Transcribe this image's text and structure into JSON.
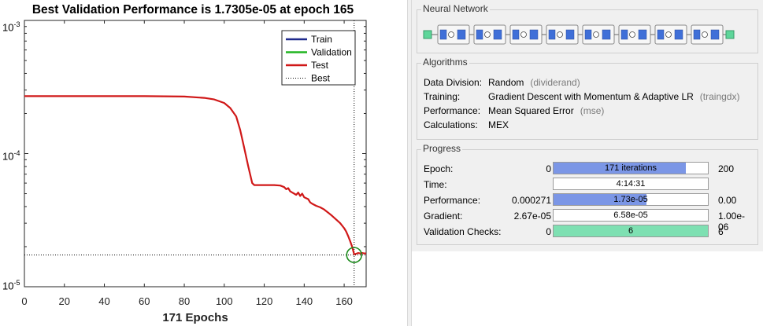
{
  "plot": {
    "title": "Best Validation Performance is 1.7305e-05 at epoch 165",
    "xlabel": "171 Epochs",
    "y_ticks": [
      {
        "base": "10",
        "exp": "-3"
      },
      {
        "base": "10",
        "exp": "-4"
      },
      {
        "base": "10",
        "exp": "-5"
      }
    ],
    "x_ticks": [
      "0",
      "20",
      "40",
      "60",
      "80",
      "100",
      "120",
      "140",
      "160"
    ],
    "legend": [
      {
        "label": "Train",
        "color": "#1f2a8c",
        "style": "solid"
      },
      {
        "label": "Validation",
        "color": "#22b522",
        "style": "solid"
      },
      {
        "label": "Test",
        "color": "#d01818",
        "style": "solid"
      },
      {
        "label": "Best",
        "color": "#000000",
        "style": "dotted"
      }
    ]
  },
  "chart_data": {
    "type": "line",
    "title": "Best Validation Performance is 1.7305e-05 at epoch 165",
    "xlabel": "171 Epochs",
    "ylabel": "",
    "yscale": "log",
    "xlim": [
      0,
      171
    ],
    "ylim": [
      1e-05,
      0.001
    ],
    "grid": false,
    "legend_position": "top-right",
    "series": [
      {
        "name": "Test",
        "color": "#d01818",
        "x": [
          0,
          20,
          40,
          60,
          80,
          90,
          95,
          100,
          103,
          106,
          108,
          110,
          112,
          114,
          115,
          116,
          118,
          120,
          125,
          128,
          130,
          131,
          132,
          133,
          134,
          135,
          136,
          137,
          138,
          139,
          140,
          142,
          143,
          144,
          146,
          148,
          150,
          152,
          154,
          156,
          158,
          160,
          161,
          162,
          163,
          164,
          165,
          166,
          167,
          168,
          169,
          170,
          171
        ],
        "y": [
          0.00027,
          0.00027,
          0.00027,
          0.00027,
          0.000268,
          0.000262,
          0.000255,
          0.00024,
          0.00022,
          0.00019,
          0.00015,
          0.00011,
          8e-05,
          6e-05,
          5.8e-05,
          5.8e-05,
          5.8e-05,
          5.8e-05,
          5.8e-05,
          5.75e-05,
          5.6e-05,
          5.4e-05,
          5.5e-05,
          5.2e-05,
          5.1e-05,
          5e-05,
          4.9e-05,
          5.1e-05,
          4.8e-05,
          5e-05,
          4.7e-05,
          4.55e-05,
          4.3e-05,
          4.2e-05,
          4.05e-05,
          3.95e-05,
          3.8e-05,
          3.6e-05,
          3.4e-05,
          3.2e-05,
          3e-05,
          2.75e-05,
          2.6e-05,
          2.4e-05,
          2.2e-05,
          2e-05,
          1.75e-05,
          1.77e-05,
          1.79e-05,
          1.78e-05,
          1.79e-05,
          1.78e-05,
          1.78e-05
        ]
      }
    ],
    "best": {
      "epoch": 165,
      "value": 1.7305e-05
    }
  },
  "network": {
    "title": "Neural Network",
    "layers": [
      "Hidden 1",
      "Hidden 2",
      "Hidden 3",
      "Hidden 4",
      "Hidden 5",
      "Hidden 6",
      "Hidden 7",
      "Output"
    ]
  },
  "algorithms": {
    "title": "Algorithms",
    "rows": [
      {
        "key": "Data Division:",
        "value": "Random",
        "fn": "(dividerand)"
      },
      {
        "key": "Training:",
        "value": "Gradient Descent with Momentum & Adaptive LR",
        "fn": "(traingdx)"
      },
      {
        "key": "Performance:",
        "value": "Mean Squared Error",
        "fn": "(mse)"
      },
      {
        "key": "Calculations:",
        "value": "MEX",
        "fn": ""
      }
    ]
  },
  "progress": {
    "title": "Progress",
    "rows": [
      {
        "label": "Epoch:",
        "min": "0",
        "text": "171 iterations",
        "max": "200",
        "fill": 0.855,
        "color": "#7b96e6"
      },
      {
        "label": "Time:",
        "min": "",
        "text": "4:14:31",
        "max": "",
        "fill": 0,
        "color": "#7b96e6"
      },
      {
        "label": "Performance:",
        "min": "0.000271",
        "text": "1.73e-05",
        "max": "0.00",
        "fill": 0.6,
        "color": "#7b96e6"
      },
      {
        "label": "Gradient:",
        "min": "2.67e-05",
        "text": "6.58e-05",
        "max": "1.00e-06",
        "fill": 0,
        "color": "#7b96e6"
      },
      {
        "label": "Validation Checks:",
        "min": "0",
        "text": "6",
        "max": "6",
        "fill": 1.0,
        "color": "#7ee0b2"
      }
    ]
  }
}
